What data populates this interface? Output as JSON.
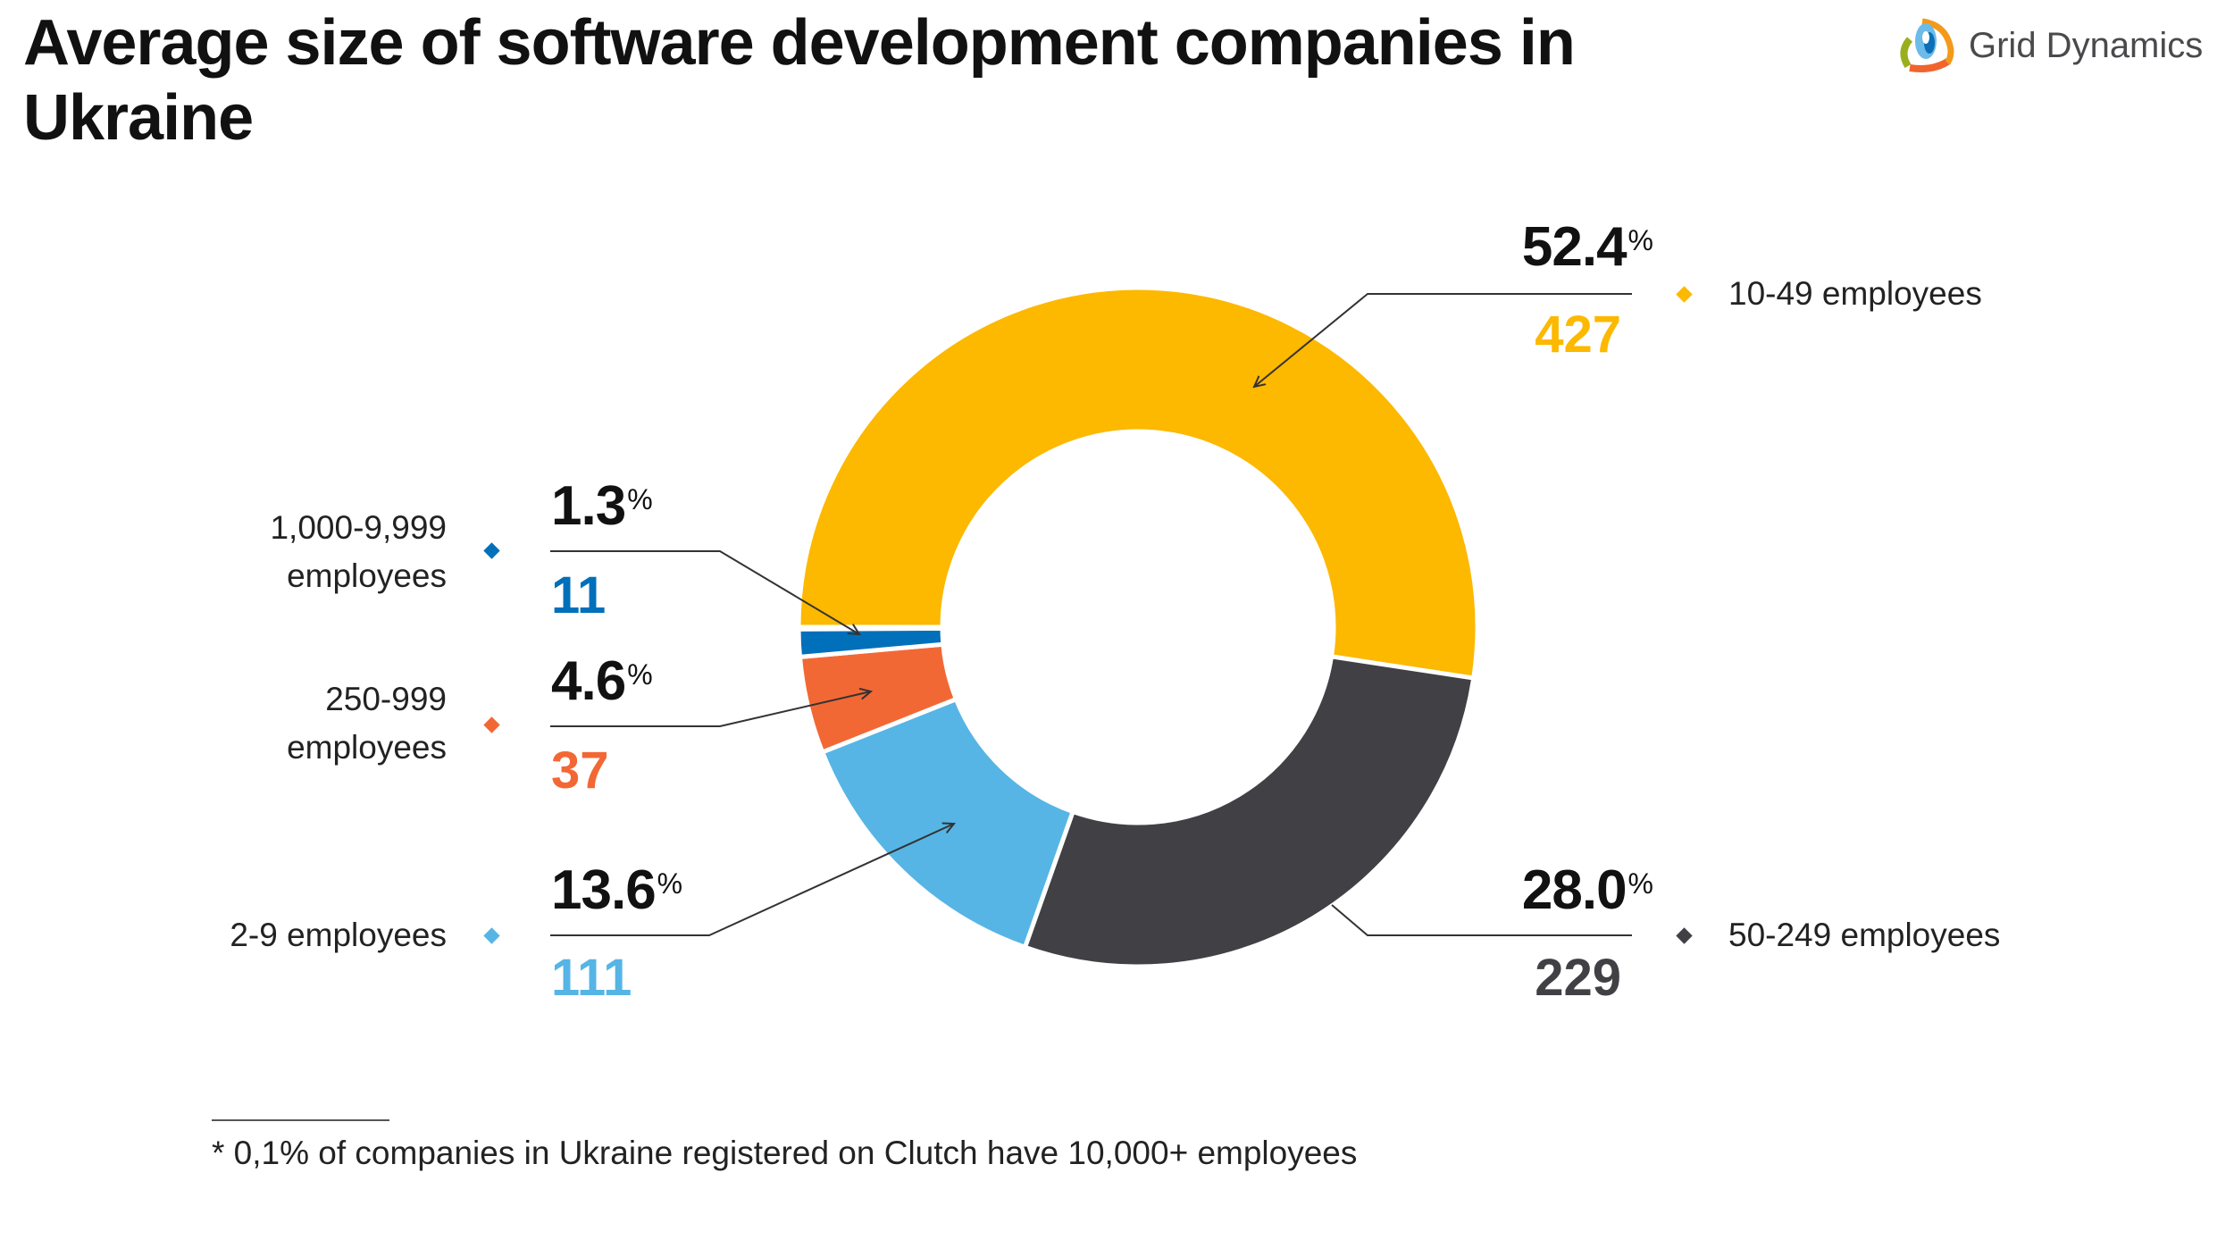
{
  "title": "Average size of software development companies in Ukraine",
  "logo": {
    "text": "Grid Dynamics"
  },
  "chart_data": {
    "type": "pie",
    "subtype": "donut",
    "title": "Average size of software development companies in Ukraine",
    "slices": [
      {
        "label": "10-49 employees",
        "percent": 52.4,
        "count": 427,
        "color": "#FDB800"
      },
      {
        "label": "50-249 employees",
        "percent": 28.0,
        "count": 229,
        "color": "#414045"
      },
      {
        "label": "2-9 employees",
        "percent": 13.6,
        "count": 111,
        "color": "#56B5E5"
      },
      {
        "label": "250-999 employees",
        "percent": 4.6,
        "count": 37,
        "color": "#F26835"
      },
      {
        "label": "1,000-9,999 employees",
        "percent": 1.3,
        "count": 11,
        "color": "#0070BA"
      }
    ],
    "percent_texts": [
      "52.4",
      "28.0",
      "13.6",
      "4.6",
      "1.3"
    ],
    "count_texts": [
      "427",
      "229",
      "111",
      "37",
      "11"
    ],
    "label_lines": [
      [
        "10-49 employees"
      ],
      [
        "50-249 employees"
      ],
      [
        "2-9 employees"
      ],
      [
        "250-999",
        "employees"
      ],
      [
        "1,000-9,999",
        "employees"
      ]
    ],
    "percent_sign": "%"
  },
  "footnote": "* 0,1% of companies in Ukraine registered on Clutch have 10,000+ employees"
}
